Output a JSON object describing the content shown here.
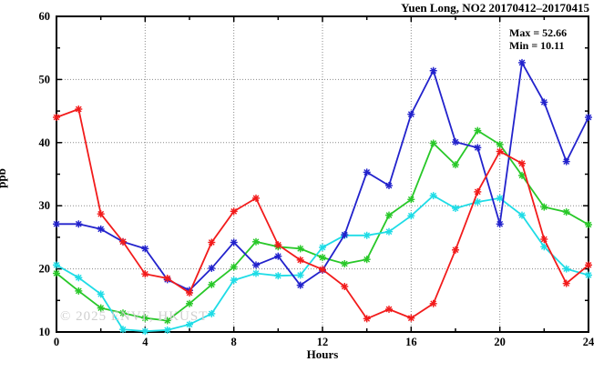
{
  "chart_data": {
    "type": "line",
    "title": "Yuen Long, NO2 20170412–20170415",
    "xlabel": "Hours",
    "ylabel": "ppb",
    "xlim": [
      0,
      24
    ],
    "ylim": [
      10,
      60
    ],
    "xticks": [
      0,
      4,
      8,
      12,
      16,
      20,
      24
    ],
    "yticks": [
      10,
      20,
      30,
      40,
      50,
      60
    ],
    "x_minor_step": 2,
    "y_minor_step": 5,
    "grid_x": [
      4,
      8,
      12,
      16,
      20
    ],
    "grid_y": [
      20,
      30,
      40,
      50
    ],
    "grid": "dotted",
    "legend_position": "top-right-inside",
    "annotations": {
      "max_label": "Max = 52.66",
      "min_label": "Min = 10.11"
    },
    "watermark": "© 2025 ENVF, HKUST",
    "x": [
      0,
      1,
      2,
      3,
      4,
      5,
      6,
      7,
      8,
      9,
      10,
      11,
      12,
      13,
      14,
      15,
      16,
      17,
      18,
      19,
      20,
      21,
      22,
      23,
      24
    ],
    "series": [
      {
        "name": "green",
        "color": "#28c828",
        "values": [
          19.3,
          16.5,
          13.8,
          13.0,
          12.2,
          11.8,
          14.5,
          17.5,
          20.3,
          24.3,
          23.5,
          23.2,
          21.8,
          20.8,
          21.5,
          28.5,
          31.0,
          39.9,
          36.5,
          41.9,
          39.7,
          34.8,
          29.8,
          29.0,
          27.0
        ]
      },
      {
        "name": "cyan",
        "color": "#1edce6",
        "values": [
          20.6,
          18.6,
          16.0,
          10.4,
          10.11,
          10.3,
          11.2,
          12.9,
          18.2,
          19.3,
          18.9,
          19.0,
          23.4,
          25.3,
          25.3,
          25.9,
          28.4,
          31.6,
          29.6,
          30.6,
          31.2,
          28.5,
          23.5,
          20.0,
          19.0
        ]
      },
      {
        "name": "blue",
        "color": "#2222cc",
        "values": [
          27.1,
          27.1,
          26.3,
          24.3,
          23.2,
          18.3,
          16.6,
          20.1,
          24.2,
          20.6,
          22.0,
          17.4,
          19.8,
          25.4,
          35.3,
          33.2,
          44.5,
          51.4,
          40.1,
          39.2,
          27.1,
          52.66,
          46.4,
          37.0,
          44.0
        ]
      },
      {
        "name": "red",
        "color": "#f21b1b",
        "values": [
          44.0,
          45.3,
          28.7,
          24.3,
          19.2,
          18.5,
          16.2,
          24.2,
          29.1,
          31.2,
          23.8,
          21.4,
          19.9,
          17.2,
          12.1,
          13.6,
          12.2,
          14.5,
          23.0,
          32.2,
          38.6,
          36.7,
          24.7,
          17.7,
          20.6
        ]
      }
    ]
  }
}
